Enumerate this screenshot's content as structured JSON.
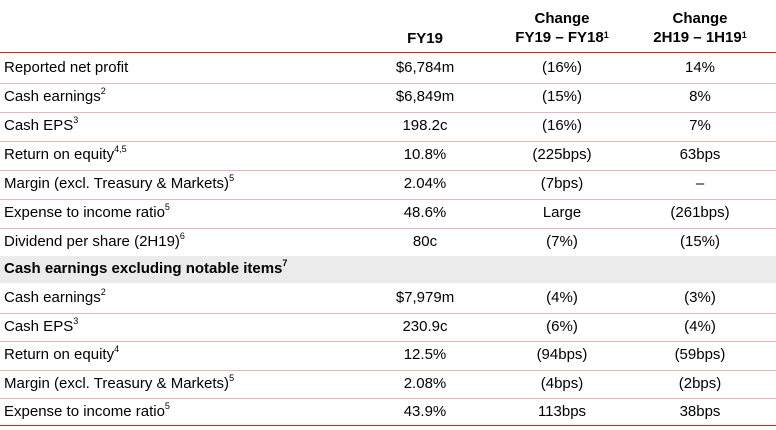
{
  "header": {
    "col1": "FY19",
    "col2_line1": "Change",
    "col2_line2": "FY19 – FY18",
    "col2_sup": "1",
    "col3_line1": "Change",
    "col3_line2": "2H19 – 1H19",
    "col3_sup": "1"
  },
  "colors": {
    "accent_red": "#e2231a",
    "section_bg": "#ebebeb"
  },
  "rows_top": [
    {
      "label": "Reported net profit",
      "sup": "",
      "fy19": "$6,784m",
      "chg_fy": "(16%)",
      "chg_h": "14%"
    },
    {
      "label": "Cash earnings",
      "sup": "2",
      "fy19": "$6,849m",
      "chg_fy": "(15%)",
      "chg_h": "8%"
    },
    {
      "label": "Cash EPS",
      "sup": "3",
      "fy19": "198.2c",
      "chg_fy": "(16%)",
      "chg_h": "7%"
    },
    {
      "label": "Return on equity",
      "sup": "4,5",
      "fy19": "10.8%",
      "chg_fy": "(225bps)",
      "chg_h": "63bps"
    },
    {
      "label": "Margin (excl. Treasury & Markets)",
      "sup": "5",
      "fy19": "2.04%",
      "chg_fy": "(7bps)",
      "chg_h": "–"
    },
    {
      "label": "Expense to income ratio",
      "sup": "5",
      "fy19": "48.6%",
      "chg_fy": "Large",
      "chg_h": "(261bps)"
    },
    {
      "label": "Dividend per share (2H19)",
      "sup": "6",
      "fy19": "80c",
      "chg_fy": "(7%)",
      "chg_h": "(15%)"
    }
  ],
  "section": {
    "label": "Cash earnings excluding notable items",
    "sup": "7"
  },
  "rows_bottom": [
    {
      "label": "Cash earnings",
      "sup": "2",
      "fy19": "$7,979m",
      "chg_fy": "(4%)",
      "chg_h": "(3%)"
    },
    {
      "label": "Cash EPS",
      "sup": "3",
      "fy19": "230.9c",
      "chg_fy": "(6%)",
      "chg_h": "(4%)"
    },
    {
      "label": "Return on equity",
      "sup": "4",
      "fy19": "12.5%",
      "chg_fy": "(94bps)",
      "chg_h": "(59bps)"
    },
    {
      "label": "Margin (excl. Treasury & Markets)",
      "sup": "5",
      "fy19": "2.08%",
      "chg_fy": "(4bps)",
      "chg_h": "(2bps)"
    },
    {
      "label": "Expense to income ratio",
      "sup": "5",
      "fy19": "43.9%",
      "chg_fy": "113bps",
      "chg_h": "38bps"
    }
  ]
}
